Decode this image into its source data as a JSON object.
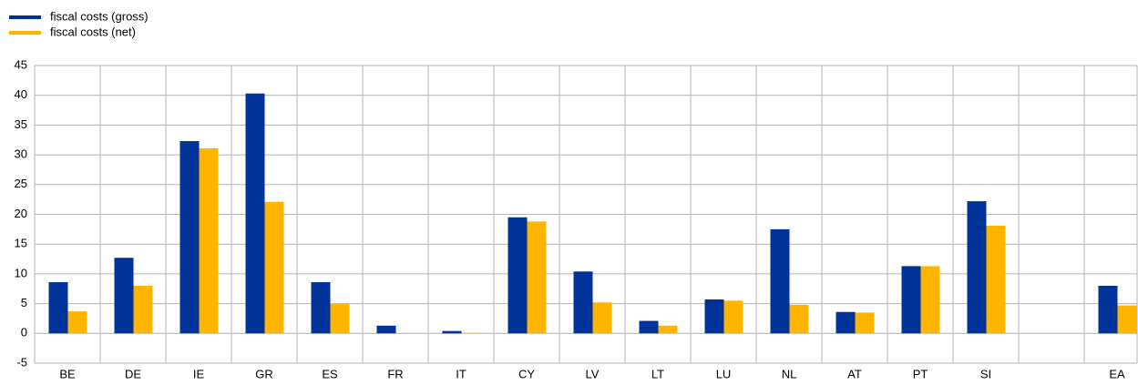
{
  "chart_data": {
    "type": "bar",
    "categories": [
      "BE",
      "DE",
      "IE",
      "GR",
      "ES",
      "FR",
      "IT",
      "CY",
      "LV",
      "LT",
      "LU",
      "NL",
      "AT",
      "PT",
      "SI",
      null,
      "EA"
    ],
    "series": [
      {
        "name": "fiscal costs (gross)",
        "color": "#003399",
        "values": [
          8.6,
          12.7,
          32.3,
          40.3,
          8.6,
          1.3,
          0.4,
          19.5,
          10.4,
          2.1,
          5.7,
          17.5,
          3.6,
          11.3,
          22.2,
          null,
          8.0
        ]
      },
      {
        "name": "fiscal costs (net)",
        "color": "#ffb400",
        "values": [
          3.7,
          8.0,
          31.1,
          22.1,
          5.0,
          0,
          0.1,
          18.8,
          5.2,
          1.3,
          5.5,
          4.8,
          3.5,
          11.3,
          18.1,
          null,
          4.7
        ]
      }
    ],
    "ylim": [
      -5,
      45
    ],
    "yticks": [
      -5,
      0,
      5,
      10,
      15,
      20,
      25,
      30,
      35,
      40,
      45
    ],
    "grid": true,
    "legend": "top-left"
  }
}
